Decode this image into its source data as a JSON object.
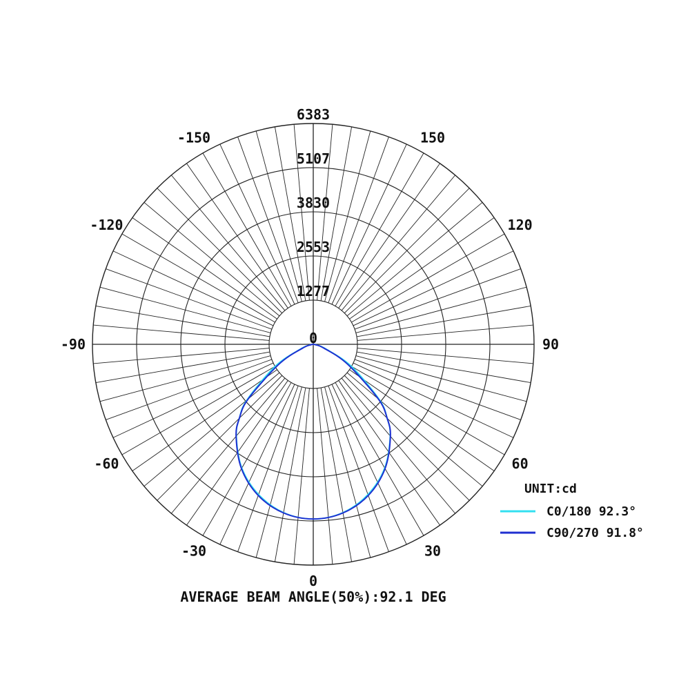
{
  "chart_data": {
    "type": "polar",
    "unit_label": "UNIT:cd",
    "footer": "AVERAGE BEAM ANGLE(50%):92.1 DEG",
    "rmax": 6383,
    "ring_labels": [
      "0",
      "1277",
      "2553",
      "3830",
      "5107",
      "6383"
    ],
    "ring_values": [
      0,
      1277,
      2553,
      3830,
      5107,
      6383
    ],
    "angle_labels": [
      {
        "deg": 0,
        "text": "0"
      },
      {
        "deg": 30,
        "text": "30"
      },
      {
        "deg": 60,
        "text": "60"
      },
      {
        "deg": 90,
        "text": "90"
      },
      {
        "deg": 120,
        "text": "120"
      },
      {
        "deg": 150,
        "text": "150"
      },
      {
        "deg": -30,
        "text": "-30"
      },
      {
        "deg": -60,
        "text": "-60"
      },
      {
        "deg": -90,
        "text": "-90"
      },
      {
        "deg": -120,
        "text": "-120"
      },
      {
        "deg": -150,
        "text": "-150"
      },
      {
        "deg": 180,
        "text": "6383"
      }
    ],
    "angles_deg": [
      0,
      10,
      20,
      30,
      40,
      45,
      50,
      60,
      70,
      80,
      90
    ],
    "series": [
      {
        "name": "C0/180",
        "legend": "C0/180 92.3°",
        "color": "#33e0f0",
        "values": [
          5050,
          4940,
          4620,
          4130,
          3460,
          3020,
          2500,
          1270,
          380,
          80,
          0
        ]
      },
      {
        "name": "C90/270",
        "legend": "C90/270 91.8°",
        "color": "#1f2fd0",
        "values": [
          5050,
          4950,
          4650,
          4150,
          3470,
          3020,
          2450,
          1140,
          330,
          60,
          0
        ]
      }
    ]
  }
}
